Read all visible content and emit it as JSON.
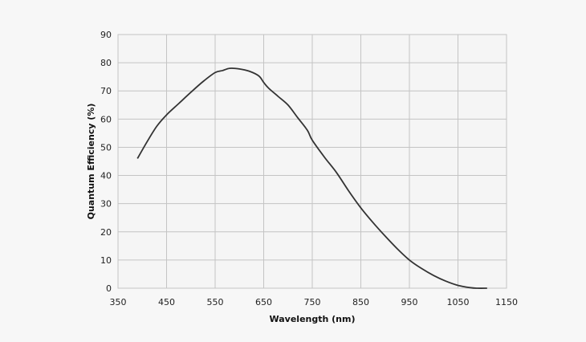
{
  "chart_data": {
    "type": "line",
    "title": "",
    "xlabel": "Wavelength (nm)",
    "ylabel": "Quantum Efficiency (%)",
    "xlim": [
      350,
      1150
    ],
    "ylim": [
      0,
      90
    ],
    "grid": true,
    "x_ticks": [
      350,
      450,
      550,
      650,
      750,
      850,
      950,
      1050,
      1150
    ],
    "y_ticks": [
      0,
      10,
      20,
      30,
      40,
      50,
      60,
      70,
      80,
      90
    ],
    "line_color": "#333333",
    "series": [
      {
        "x": [
          390,
          410,
          430,
          450,
          475,
          500,
          525,
          550,
          565,
          580,
          600,
          620,
          640,
          650,
          660,
          680,
          700,
          720,
          740,
          750,
          775,
          800,
          825,
          850,
          875,
          900,
          925,
          950,
          975,
          1000,
          1025,
          1050,
          1075,
          1090,
          1110
        ],
        "y": [
          46,
          52,
          57.5,
          61.5,
          65.5,
          69.5,
          73.3,
          76.5,
          77.2,
          78,
          77.8,
          77,
          75.3,
          73,
          71,
          68,
          65,
          60.5,
          56,
          52.5,
          46.5,
          41,
          34.5,
          28.5,
          23.3,
          18.5,
          14,
          10,
          7,
          4.5,
          2.5,
          1,
          0.2,
          0,
          0
        ]
      }
    ]
  }
}
